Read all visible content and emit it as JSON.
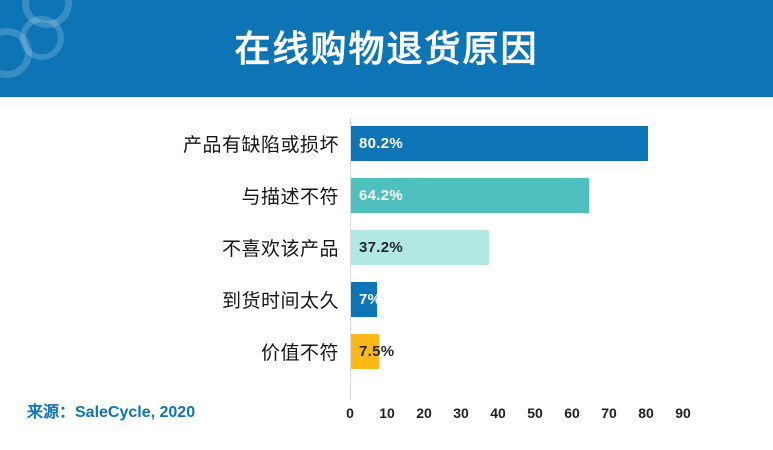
{
  "header": {
    "title": "在线购物退货原因",
    "background_color": "#0d74b6",
    "decoration": "overlapping-rings-logo"
  },
  "chart_data": {
    "type": "bar",
    "orientation": "horizontal",
    "title": "在线购物退货原因",
    "categories": [
      "产品有缺陷或损坏",
      "与描述不符",
      "不喜欢该产品",
      "到货时间太久",
      "价值不符"
    ],
    "values": [
      80.2,
      64.2,
      37.2,
      7,
      7.5
    ],
    "value_labels": [
      "80.2%",
      "64.2%",
      "37.2%",
      "7%",
      "7.5%"
    ],
    "bar_colors": [
      "#0d74b6",
      "#4fc0bd",
      "#b2e8e4",
      "#0d74b6",
      "#fbb817"
    ],
    "value_label_colors": [
      "#ffffff",
      "#ffffff",
      "#23262e",
      "#ffffff",
      "#23262e"
    ],
    "value_label_position": "inside-left",
    "xlabel": "",
    "ylabel": "",
    "xlim": [
      0,
      100
    ],
    "x_ticks": [
      0,
      10,
      20,
      30,
      40,
      50,
      60,
      70,
      80,
      90
    ],
    "grid": false,
    "legend": false,
    "axis_line_color": "#d8d8d8"
  },
  "source": {
    "label": "来源：SaleCycle, 2020",
    "color": "#0d74b6"
  }
}
